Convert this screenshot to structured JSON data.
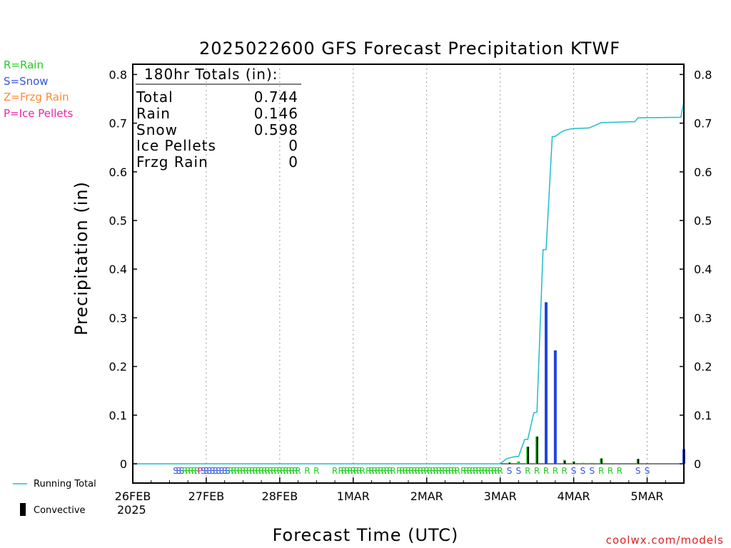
{
  "chart_data": {
    "type": "bar",
    "title": "2025022600 GFS Forecast Precipitation KTWF",
    "ylabel": "Precipitation (in)",
    "xlabel": "Forecast Time (UTC)",
    "ylim": [
      0,
      0.82
    ],
    "y_ticks": [
      0,
      0.1,
      0.2,
      0.3,
      0.4,
      0.5,
      0.6,
      0.7,
      0.8
    ],
    "y_tick_labels": [
      "0",
      "0.1",
      "0.2",
      "0.3",
      "0.4",
      "0.5",
      "0.6",
      "0.7",
      "0.8"
    ],
    "xlim_hours": [
      0,
      180
    ],
    "x_tick_hours": [
      0,
      24,
      48,
      72,
      96,
      120,
      144,
      168
    ],
    "x_tick_labels": [
      "26FEB",
      "27FEB",
      "28FEB",
      "1MAR",
      "2MAR",
      "3MAR",
      "4MAR",
      "5MAR"
    ],
    "x_year_label": "2025",
    "grid": "vertical dotted at day boundaries",
    "legend_types": [
      {
        "label": "R=Rain",
        "color": "#22cc22"
      },
      {
        "label": "S=Snow",
        "color": "#3355dd"
      },
      {
        "label": "Z=Frzg Rain",
        "color": "#ff8833"
      },
      {
        "label": "P=Ice Pellets",
        "color": "#ee22aa"
      }
    ],
    "legend_series": [
      {
        "label": "Running Total",
        "color": "#22bbcc"
      },
      {
        "label": "Convective",
        "color": "#000000"
      }
    ],
    "totals": {
      "header": "180hr Totals (in):",
      "rows": [
        {
          "label": "Total",
          "value": "0.744"
        },
        {
          "label": "Rain",
          "value": "0.146"
        },
        {
          "label": "Snow",
          "value": "0.598"
        },
        {
          "label": "Ice Pellets",
          "value": "0"
        },
        {
          "label": "Frzg Rain",
          "value": "0"
        }
      ]
    },
    "bars": [
      {
        "hour": 123,
        "value": 0.003,
        "type": "rain"
      },
      {
        "hour": 126,
        "value": 0.005,
        "type": "rain"
      },
      {
        "hour": 129,
        "value": 0.035,
        "type": "rain"
      },
      {
        "hour": 132,
        "value": 0.056,
        "type": "rain"
      },
      {
        "hour": 135,
        "value": 0.332,
        "type": "snow"
      },
      {
        "hour": 138,
        "value": 0.233,
        "type": "snow"
      },
      {
        "hour": 141,
        "value": 0.008,
        "type": "rain"
      },
      {
        "hour": 144,
        "value": 0.005,
        "type": "rain"
      },
      {
        "hour": 147,
        "value": 0.002,
        "type": "rain"
      },
      {
        "hour": 150,
        "value": 0.002,
        "type": "rain"
      },
      {
        "hour": 153,
        "value": 0.011,
        "type": "rain"
      },
      {
        "hour": 165,
        "value": 0.01,
        "type": "rain"
      },
      {
        "hour": 180,
        "value": 0.03,
        "type": "snow"
      }
    ],
    "convective_bars": [
      {
        "hour": 123,
        "value": 0.002
      },
      {
        "hour": 129,
        "value": 0.035
      },
      {
        "hour": 132,
        "value": 0.056
      },
      {
        "hour": 141,
        "value": 0.006
      },
      {
        "hour": 144,
        "value": 0.004
      },
      {
        "hour": 153,
        "value": 0.011
      },
      {
        "hour": 165,
        "value": 0.01
      }
    ],
    "running_total": {
      "hours": [
        0,
        120,
        122,
        123,
        125,
        126,
        128,
        129,
        131,
        132,
        134,
        135,
        137,
        138,
        140,
        141,
        143,
        144,
        149,
        153,
        164,
        165,
        179,
        180
      ],
      "values": [
        0,
        0,
        0.01,
        0.012,
        0.015,
        0.015,
        0.05,
        0.05,
        0.105,
        0.106,
        0.44,
        0.44,
        0.672,
        0.673,
        0.682,
        0.685,
        0.688,
        0.689,
        0.69,
        0.701,
        0.703,
        0.711,
        0.712,
        0.744
      ]
    },
    "ptype_hours": [
      14,
      15,
      16,
      17,
      18,
      19,
      20,
      21,
      22,
      23,
      24,
      25,
      26,
      27,
      28,
      29,
      30,
      31,
      32,
      33,
      34,
      35,
      36,
      37,
      38,
      39,
      40,
      41,
      42,
      43,
      44,
      45,
      46,
      47,
      48,
      49,
      50,
      51,
      52,
      53,
      54,
      57,
      60,
      66,
      68,
      69,
      70,
      71,
      72,
      73,
      74,
      75,
      77,
      78,
      79,
      80,
      81,
      82,
      83,
      84,
      85,
      87,
      88,
      89,
      90,
      91,
      92,
      93,
      94,
      95,
      96,
      97,
      98,
      99,
      100,
      101,
      102,
      103,
      104,
      105,
      106,
      108,
      109,
      110,
      111,
      112,
      113,
      114,
      115,
      116,
      117,
      118,
      119,
      120,
      123,
      126,
      129,
      132,
      135,
      138,
      141,
      144,
      147,
      150,
      153,
      156,
      159,
      165,
      168,
      171,
      174,
      177,
      180
    ],
    "ptype_codes": "SSSRRRRRPSSSSSSSSSRRRRRRRRRRRRRRRRRRRRRRRRRRRRRRRRRRRRRRRRRRRRRRRRRRRRRRRRRRRRRRRRRRRRRRRRRRRRSSRRRRRSSSRRRSS"
  },
  "footer": {
    "source": "coolwx.com/models"
  }
}
